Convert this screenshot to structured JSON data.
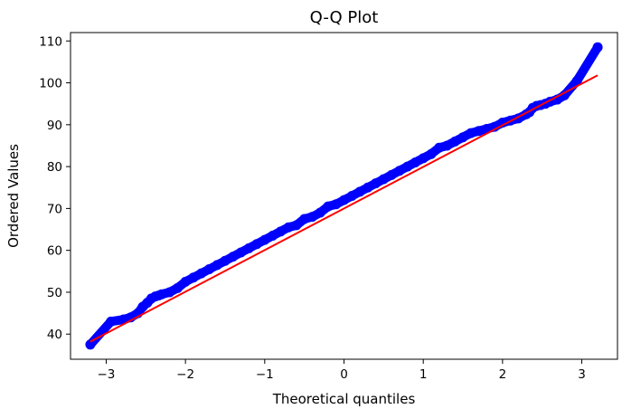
{
  "chart_data": {
    "type": "scatter",
    "title": "Q-Q Plot",
    "xlabel": "Theoretical quantiles",
    "ylabel": "Ordered Values",
    "xlim": [
      -3.45,
      3.45
    ],
    "ylim": [
      34,
      112
    ],
    "x_ticks": [
      -3,
      -2,
      -1,
      0,
      1,
      2,
      3
    ],
    "x_tick_labels": [
      "−3",
      "−2",
      "−1",
      "0",
      "1",
      "2",
      "3"
    ],
    "y_ticks": [
      40,
      50,
      60,
      70,
      80,
      90,
      100,
      110
    ],
    "y_tick_labels": [
      "40",
      "50",
      "60",
      "70",
      "80",
      "90",
      "100",
      "110"
    ],
    "grid": false,
    "series": [
      {
        "kind": "points",
        "color": "#0000ff",
        "x": [
          -3.2,
          -2.94,
          -2.78,
          -2.69,
          -2.6,
          -2.54,
          -2.48,
          -2.43,
          -2.38,
          -2.34,
          -2.3,
          -2.2,
          -2.1,
          -2.0,
          -1.9,
          -1.8,
          -1.7,
          -1.6,
          -1.5,
          -1.4,
          -1.3,
          -1.2,
          -1.1,
          -1.0,
          -0.9,
          -0.8,
          -0.7,
          -0.6,
          -0.5,
          -0.4,
          -0.3,
          -0.2,
          -0.1,
          0.0,
          0.1,
          0.2,
          0.3,
          0.4,
          0.5,
          0.6,
          0.7,
          0.8,
          0.9,
          1.0,
          1.1,
          1.2,
          1.3,
          1.4,
          1.5,
          1.6,
          1.7,
          1.8,
          1.9,
          2.0,
          2.1,
          2.2,
          2.3,
          2.34,
          2.38,
          2.43,
          2.48,
          2.54,
          2.6,
          2.69,
          2.78,
          2.94,
          3.2
        ],
        "y": [
          37.5,
          43.0,
          43.5,
          44.0,
          45.0,
          46.5,
          47.5,
          48.5,
          49.0,
          49.2,
          49.5,
          50.0,
          51.0,
          52.5,
          53.5,
          54.5,
          55.5,
          56.5,
          57.5,
          58.5,
          59.5,
          60.5,
          61.5,
          62.5,
          63.5,
          64.5,
          65.5,
          66.0,
          67.5,
          68.0,
          69.0,
          70.5,
          71.0,
          72.0,
          73.0,
          74.0,
          75.0,
          76.0,
          77.0,
          78.0,
          79.0,
          80.0,
          81.0,
          82.0,
          83.0,
          84.5,
          85.0,
          86.0,
          87.0,
          88.0,
          88.5,
          89.0,
          89.5,
          90.5,
          91.0,
          91.5,
          92.5,
          93.0,
          94.0,
          94.5,
          94.7,
          95.0,
          95.5,
          96.0,
          97.0,
          100.5,
          108.5
        ]
      },
      {
        "kind": "fit-line",
        "color": "#ff0000",
        "x": [
          -3.2,
          3.2
        ],
        "y": [
          38.2,
          101.8
        ]
      }
    ]
  }
}
